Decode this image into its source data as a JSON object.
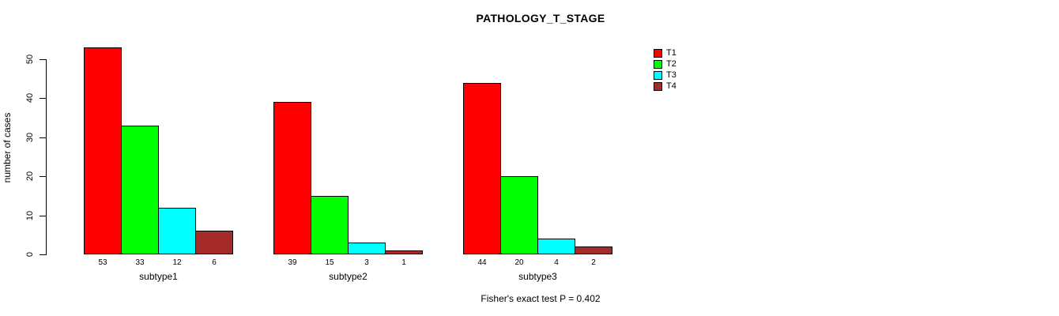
{
  "page": {
    "background": "#ffffff"
  },
  "chart_data": {
    "type": "bar",
    "title": "PATHOLOGY_T_STAGE",
    "xlabel": "",
    "ylabel": "number of cases",
    "categories": [
      "subtype1",
      "subtype2",
      "subtype3"
    ],
    "series": [
      {
        "name": "T1",
        "color": "#FF0000",
        "values": [
          53,
          39,
          44
        ]
      },
      {
        "name": "T2",
        "color": "#00FF00",
        "values": [
          33,
          15,
          20
        ]
      },
      {
        "name": "T3",
        "color": "#00FFFF",
        "values": [
          12,
          3,
          4
        ]
      },
      {
        "name": "T4",
        "color": "#A52A2A",
        "values": [
          6,
          1,
          2
        ]
      }
    ],
    "bar_value_labels": [
      [
        53,
        33,
        12,
        6
      ],
      [
        39,
        15,
        3,
        1
      ],
      [
        44,
        20,
        4,
        2
      ]
    ],
    "yticks": [
      0,
      10,
      20,
      30,
      40,
      50
    ],
    "ylim": [
      0,
      50
    ],
    "grid": false,
    "legend_position": "top-right",
    "legend": [
      {
        "label": "T1",
        "color": "#FF0000"
      },
      {
        "label": "T2",
        "color": "#00FF00"
      },
      {
        "label": "T3",
        "color": "#00FFFF"
      },
      {
        "label": "T4",
        "color": "#A52A2A"
      }
    ],
    "annotation": "Fisher's exact test P = 0.402"
  }
}
